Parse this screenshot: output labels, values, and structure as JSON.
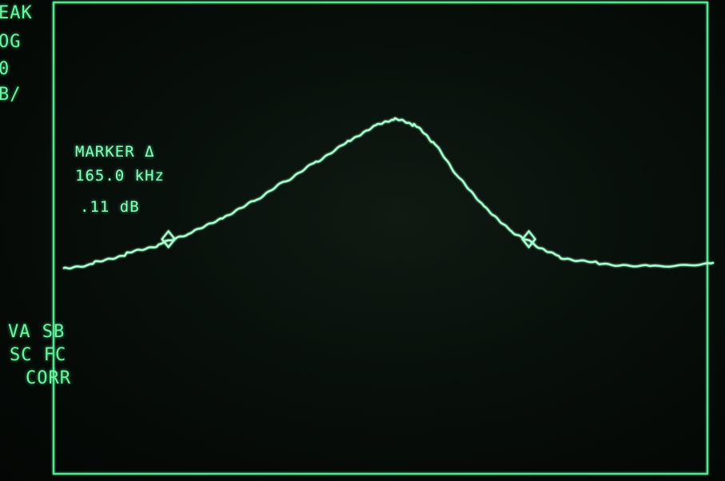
{
  "left_annotations": {
    "detector": "EAK",
    "scale": "OG",
    "ref": "0",
    "units": "B/",
    "va_sb": "VA SB",
    "sc_fc": "SC FC",
    "corr": "CORR"
  },
  "marker_readout": {
    "title": "MARKER Δ",
    "frequency": "165.0 kHz",
    "amplitude": ".11 dB"
  },
  "colors": {
    "trace": "#a8ffcf",
    "graticule": "#56e690",
    "text": "#8affbd",
    "background": "#070d09"
  },
  "chart_data": {
    "type": "line",
    "title": "",
    "xlabel": "",
    "ylabel": "",
    "grid": true,
    "xlim": [
      0,
      10
    ],
    "ylim": [
      -8,
      0
    ],
    "x_divisions": 10,
    "y_divisions": 8,
    "marker_delta": {
      "frequency": "165.0 kHz",
      "amplitude": ".11 dB"
    },
    "markers": [
      {
        "x": 1.45,
        "y": -3.95
      },
      {
        "x": 7.1,
        "y": -3.95
      }
    ],
    "series": [
      {
        "values": [
          [
            -0.2,
            -4.45
          ],
          [
            0.3,
            -4.35
          ],
          [
            0.8,
            -4.2
          ],
          [
            1.3,
            -4.05
          ],
          [
            1.8,
            -3.85
          ],
          [
            2.3,
            -3.6
          ],
          [
            2.8,
            -3.3
          ],
          [
            3.3,
            -2.95
          ],
          [
            3.8,
            -2.6
          ],
          [
            4.3,
            -2.25
          ],
          [
            4.7,
            -2.0
          ],
          [
            5.0,
            -1.9
          ],
          [
            5.3,
            -2.0
          ],
          [
            5.6,
            -2.3
          ],
          [
            6.0,
            -2.9
          ],
          [
            6.4,
            -3.4
          ],
          [
            6.8,
            -3.8
          ],
          [
            7.2,
            -4.05
          ],
          [
            7.6,
            -4.25
          ],
          [
            8.2,
            -4.35
          ],
          [
            9.0,
            -4.4
          ],
          [
            10.0,
            -4.35
          ]
        ]
      }
    ]
  }
}
